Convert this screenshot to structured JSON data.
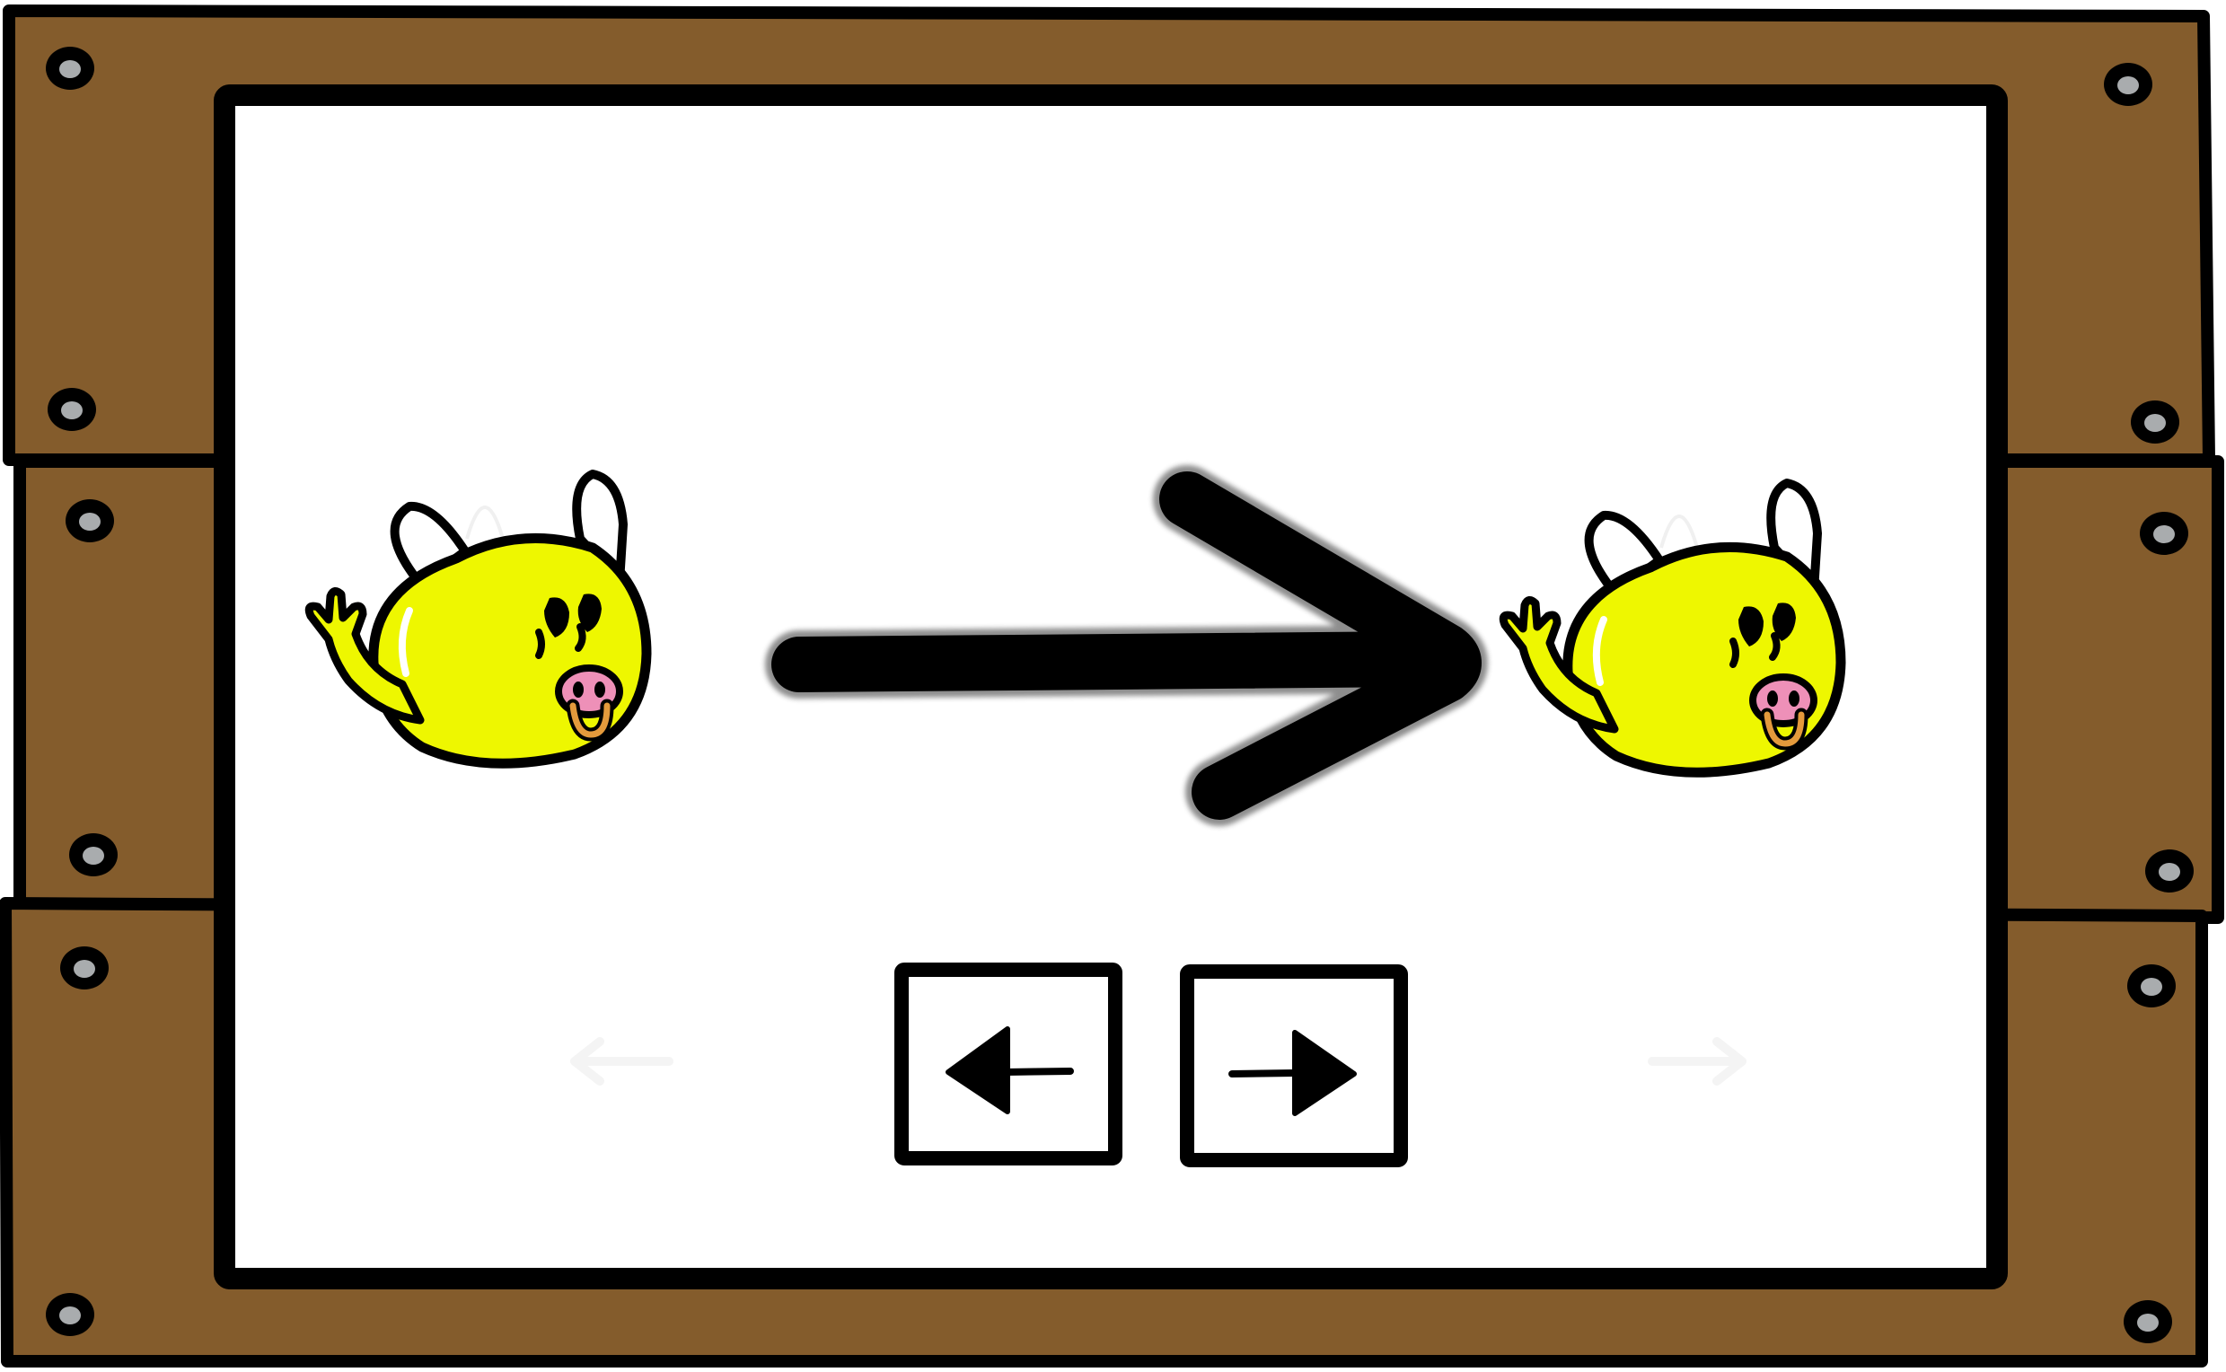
{
  "scene": {
    "frame_color": "#845c2c",
    "frame_outline": "#000000",
    "bolt_color": "#a9acae",
    "screen_color": "#ffffff",
    "creature_color": "#eef700",
    "snout_color": "#ee90b8",
    "ring_color": "#e49a3c",
    "creature_icon": "yellow-bull-creature",
    "direction_arrow_icon": "right-arrow"
  },
  "controls": {
    "left_key_icon": "left-arrow-key",
    "right_key_icon": "right-arrow-key"
  }
}
